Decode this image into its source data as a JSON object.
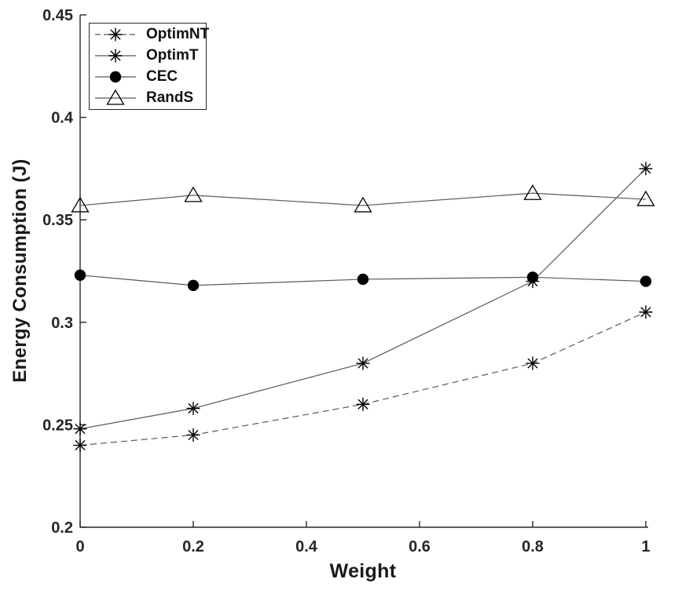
{
  "figure": {
    "background": "#ffffff",
    "axis_color": "#262626",
    "series_line_color": "#595959",
    "marker_color": "#000000"
  },
  "chart_data": {
    "type": "line",
    "title": "",
    "xlabel": "Weight",
    "ylabel": "Energy Consumption (J)",
    "xlim": [
      0,
      1
    ],
    "ylim": [
      0.2,
      0.45
    ],
    "xtick_values": [
      0,
      0.2,
      0.4,
      0.6,
      0.8,
      1
    ],
    "xtick_labels": [
      "0",
      "0.2",
      "0.4",
      "0.6",
      "0.8",
      "1"
    ],
    "ytick_values": [
      0.2,
      0.25,
      0.3,
      0.35,
      0.4,
      0.45
    ],
    "ytick_labels": [
      "0.2",
      "0.25",
      "0.3",
      "0.35",
      "0.4",
      "0.45"
    ],
    "grid": false,
    "legend_position": "top-left",
    "x": [
      0,
      0.2,
      0.5,
      0.8,
      1
    ],
    "series": [
      {
        "name": "OptimNT",
        "line_style": "dashed",
        "marker": "asterisk",
        "values": [
          0.24,
          0.245,
          0.26,
          0.28,
          0.305
        ]
      },
      {
        "name": "OptimT",
        "line_style": "solid",
        "marker": "asterisk",
        "values": [
          0.248,
          0.258,
          0.28,
          0.32,
          0.375
        ]
      },
      {
        "name": "CEC",
        "line_style": "solid",
        "marker": "filled-circle",
        "values": [
          0.323,
          0.318,
          0.321,
          0.322,
          0.32
        ]
      },
      {
        "name": "RandS",
        "line_style": "solid",
        "marker": "open-triangle",
        "values": [
          0.357,
          0.362,
          0.357,
          0.363,
          0.36
        ]
      }
    ]
  }
}
